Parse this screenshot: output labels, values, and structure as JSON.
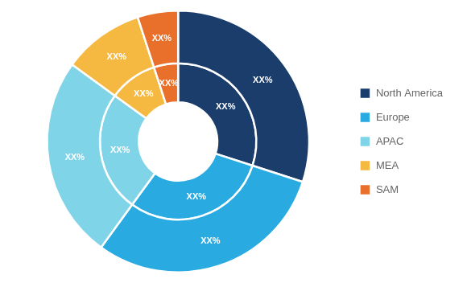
{
  "chart_data": {
    "type": "doughnut",
    "categories": [
      "North America",
      "Europe",
      "APAC",
      "MEA",
      "SAM"
    ],
    "colors": [
      "#1a3d6b",
      "#29abe2",
      "#7fd4e8",
      "#f5b942",
      "#e8702a"
    ],
    "series": [
      {
        "values": [
          30,
          30,
          25,
          10,
          5
        ],
        "value_labels": [
          "XX%",
          "XX%",
          "XX%",
          "XX%",
          "XX%"
        ]
      },
      {
        "values": [
          30,
          30,
          25,
          10,
          5
        ],
        "value_labels": [
          "XX%",
          "XX%",
          "XX%",
          "XX%",
          "XX%"
        ]
      }
    ],
    "data_labels": true,
    "legend": "right"
  }
}
